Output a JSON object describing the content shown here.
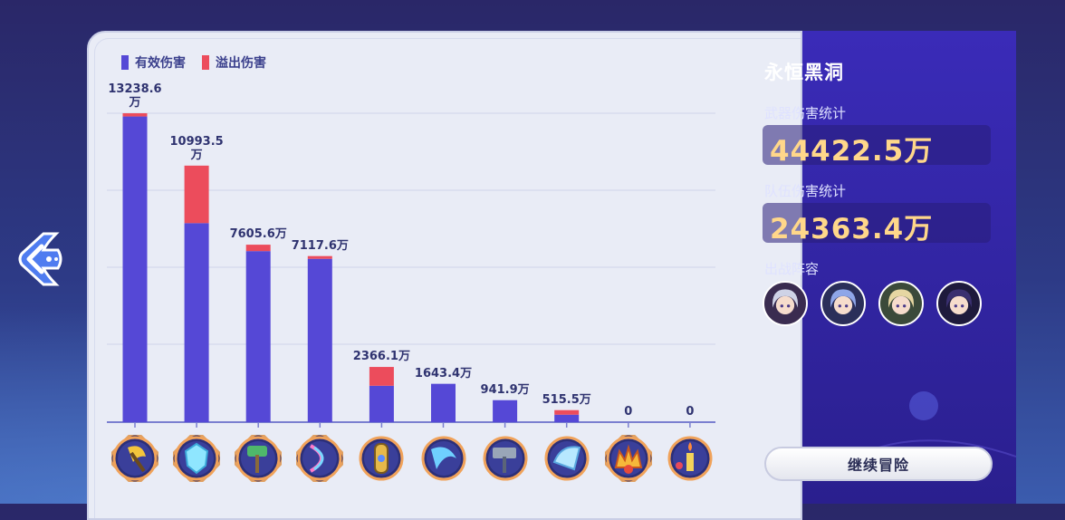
{
  "legend": {
    "effective_label": "有效伤害",
    "overflow_label": "溢出伤害",
    "effective_color": "#5548d6",
    "overflow_color": "#ec4c5c"
  },
  "panel": {
    "title": "永恒黑洞",
    "weapon_damage_label": "武器伤害统计",
    "weapon_damage_value": "44422.5万",
    "team_damage_label": "队伍伤害统计",
    "team_damage_value": "24363.4万",
    "lineup_label": "出战阵容",
    "continue_label": "继续冒险"
  },
  "chart_data": {
    "type": "bar",
    "stacked": true,
    "unit": "万",
    "ylim": [
      0,
      13238.6
    ],
    "grid": true,
    "categories": [
      "w1",
      "w2",
      "w3",
      "w4",
      "w5",
      "w6",
      "w7",
      "w8",
      "w9",
      "w10"
    ],
    "labels": [
      "13238.6\n万",
      "10993.5\n万",
      "7605.6万",
      "7117.6万",
      "2366.1万",
      "1643.4万",
      "941.9万",
      "515.5万",
      "0",
      "0"
    ],
    "totals": [
      13238.6,
      10993.5,
      7605.6,
      7117.6,
      2366.1,
      1643.4,
      941.9,
      515.5,
      0,
      0
    ],
    "series": [
      {
        "name": "有效伤害",
        "values": [
          13100,
          8530,
          7330,
          7000,
          1560,
          1643.4,
          941.9,
          320,
          0,
          0
        ]
      },
      {
        "name": "溢出伤害",
        "values": [
          138.6,
          2463.5,
          275.6,
          117.6,
          806.1,
          0,
          0,
          195.5,
          0,
          0
        ]
      }
    ]
  },
  "weapons": [
    {
      "icon": "golden-axe-icon",
      "frame": "ornate"
    },
    {
      "icon": "crystal-shield-icon",
      "frame": "ornate"
    },
    {
      "icon": "green-hammer-icon",
      "frame": "ornate"
    },
    {
      "icon": "rainbow-bow-icon",
      "frame": "ornate"
    },
    {
      "icon": "golden-amulet-icon",
      "frame": "plain"
    },
    {
      "icon": "scythe-blade-icon",
      "frame": "plain"
    },
    {
      "icon": "war-hammer-icon",
      "frame": "plain"
    },
    {
      "icon": "ice-fan-icon",
      "frame": "plain"
    },
    {
      "icon": "fire-crown-icon",
      "frame": "ornate"
    },
    {
      "icon": "candle-icon",
      "frame": "plain"
    }
  ],
  "lineup": [
    {
      "icon": "avatar-silver-hair-icon",
      "hair": "#cfd3e6",
      "bg": "#3a2c50"
    },
    {
      "icon": "avatar-blue-hair-icon",
      "hair": "#8fa6e8",
      "bg": "#2b2f5a"
    },
    {
      "icon": "avatar-blonde-hair-icon",
      "hair": "#e6d6a2",
      "bg": "#3b4a3a"
    },
    {
      "icon": "avatar-dark-hair-icon",
      "hair": "#3a3070",
      "bg": "#1e1a3c"
    }
  ]
}
